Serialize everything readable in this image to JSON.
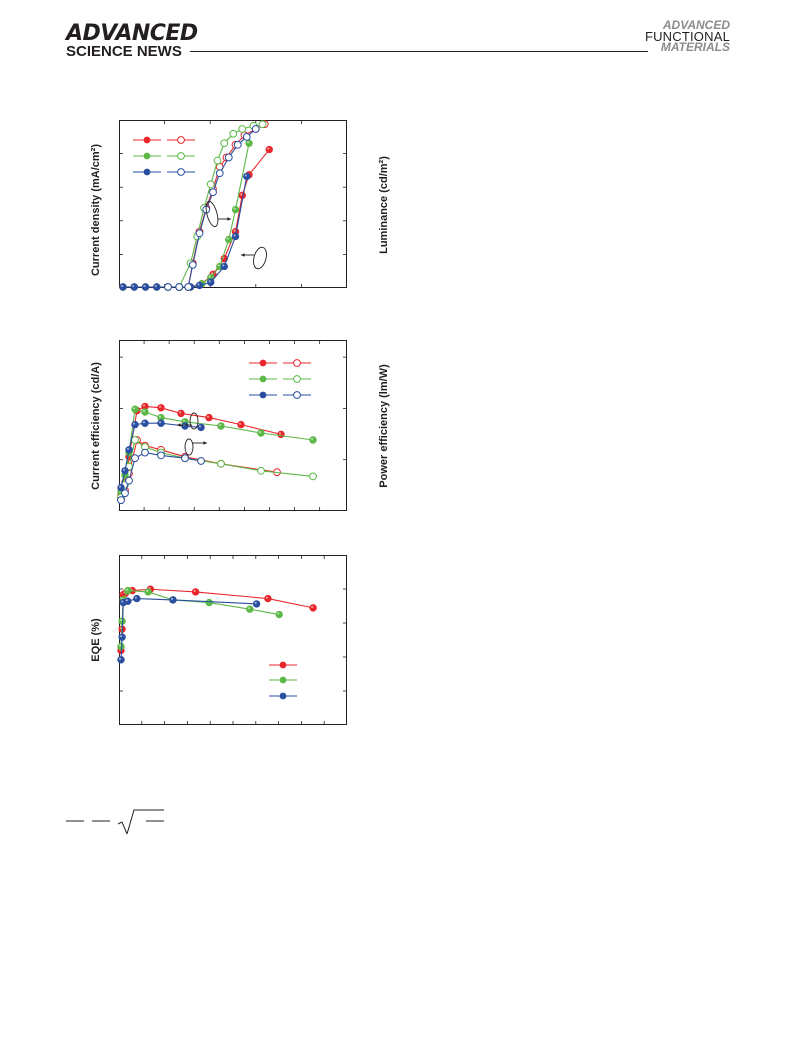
{
  "header": {
    "journal_left_top": "ADVANCED",
    "journal_left_bottom": "SCIENCE NEWS",
    "journal_right": [
      "ADVANCED",
      "FUNCTIONAL",
      "MATERIALS"
    ]
  },
  "colors": {
    "red": "#e8262b",
    "green": "#5cb847",
    "blue": "#2a4fa0"
  },
  "chart_data": [
    {
      "type": "scatter",
      "panel": "top",
      "ylabel": "Current density (mA/cm²)",
      "ylabel_right": "Luminance (cd/m²)",
      "series": [
        {
          "color": "red",
          "marker": "filled",
          "axis": "left",
          "points": [
            [
              0,
              0
            ],
            [
              0.5,
              0
            ],
            [
              1,
              0
            ],
            [
              1.5,
              0
            ],
            [
              2,
              0
            ],
            [
              2.5,
              0
            ],
            [
              3,
              0
            ],
            [
              3.5,
              0.2
            ],
            [
              4,
              0.8
            ],
            [
              4.5,
              1.8
            ],
            [
              5,
              3.5
            ],
            [
              5.3,
              5.8
            ],
            [
              5.6,
              7.1
            ],
            [
              6.5,
              8.7
            ]
          ]
        },
        {
          "color": "red",
          "marker": "hollow",
          "axis": "right",
          "points": [
            [
              2,
              0
            ],
            [
              2.5,
              0
            ],
            [
              2.9,
              0
            ],
            [
              3.1,
              1.5
            ],
            [
              3.4,
              3.5
            ],
            [
              3.7,
              5
            ],
            [
              4,
              6.2
            ],
            [
              4.3,
              7.6
            ],
            [
              4.6,
              8.2
            ],
            [
              5,
              9
            ],
            [
              5.4,
              9.6
            ],
            [
              5.9,
              10
            ],
            [
              6.3,
              10.3
            ]
          ]
        },
        {
          "color": "green",
          "marker": "filled",
          "axis": "left",
          "points": [
            [
              0,
              0
            ],
            [
              0.5,
              0
            ],
            [
              1,
              0
            ],
            [
              1.5,
              0
            ],
            [
              2,
              0
            ],
            [
              2.5,
              0
            ],
            [
              3,
              0
            ],
            [
              3.5,
              0.2
            ],
            [
              3.9,
              0.6
            ],
            [
              4.3,
              1.3
            ],
            [
              4.7,
              3
            ],
            [
              5,
              4.9
            ],
            [
              5.6,
              9.1
            ]
          ]
        },
        {
          "color": "green",
          "marker": "hollow",
          "axis": "right",
          "points": [
            [
              2,
              0
            ],
            [
              2.5,
              0
            ],
            [
              3,
              1.5
            ],
            [
              3.3,
              3.2
            ],
            [
              3.6,
              5
            ],
            [
              3.9,
              6.5
            ],
            [
              4.2,
              8
            ],
            [
              4.5,
              9.1
            ],
            [
              4.9,
              9.7
            ],
            [
              5.3,
              10
            ],
            [
              5.8,
              10.2
            ],
            [
              6.2,
              10.3
            ]
          ]
        },
        {
          "color": "blue",
          "marker": "filled",
          "axis": "left",
          "points": [
            [
              0,
              0
            ],
            [
              0.5,
              0
            ],
            [
              1,
              0
            ],
            [
              1.5,
              0
            ],
            [
              2,
              0
            ],
            [
              2.5,
              0
            ],
            [
              3,
              0
            ],
            [
              3.4,
              0.1
            ],
            [
              3.9,
              0.3
            ],
            [
              4.5,
              1.3
            ],
            [
              5,
              3.2
            ],
            [
              5.5,
              7
            ]
          ]
        },
        {
          "color": "blue",
          "marker": "hollow",
          "axis": "right",
          "points": [
            [
              2,
              0
            ],
            [
              2.5,
              0
            ],
            [
              2.9,
              0
            ],
            [
              3.1,
              1.4
            ],
            [
              3.4,
              3.4
            ],
            [
              3.7,
              4.9
            ],
            [
              4,
              6
            ],
            [
              4.3,
              7.2
            ],
            [
              4.7,
              8.2
            ],
            [
              5.1,
              9
            ],
            [
              5.5,
              9.5
            ],
            [
              5.9,
              10
            ]
          ]
        }
      ]
    },
    {
      "type": "scatter",
      "panel": "middle",
      "ylabel": "Current efficiency (cd/A)",
      "ylabel_right": "Power efficiency (lm/W)",
      "series": [
        {
          "color": "red",
          "marker": "filled",
          "axis": "left",
          "points": [
            [
              0,
              0.6
            ],
            [
              0.1,
              1.5
            ],
            [
              0.2,
              3.3
            ],
            [
              0.4,
              6.6
            ],
            [
              0.6,
              6.9
            ],
            [
              1,
              6.8
            ],
            [
              1.5,
              6.4
            ],
            [
              2.2,
              6.1
            ],
            [
              3,
              5.6
            ],
            [
              4,
              4.9
            ]
          ]
        },
        {
          "color": "red",
          "marker": "hollow",
          "axis": "right",
          "points": [
            [
              0,
              0.3
            ],
            [
              0.1,
              0.9
            ],
            [
              0.2,
              2.1
            ],
            [
              0.4,
              4.5
            ],
            [
              0.6,
              4.1
            ],
            [
              1,
              3.8
            ],
            [
              1.6,
              3.3
            ],
            [
              2.5,
              2.8
            ],
            [
              3.9,
              2.2
            ]
          ]
        },
        {
          "color": "green",
          "marker": "filled",
          "axis": "left",
          "points": [
            [
              0,
              0.8
            ],
            [
              0.1,
              2
            ],
            [
              0.2,
              3.6
            ],
            [
              0.35,
              6.7
            ],
            [
              0.6,
              6.5
            ],
            [
              1,
              6.1
            ],
            [
              1.6,
              5.8
            ],
            [
              2.5,
              5.5
            ],
            [
              3.5,
              5
            ],
            [
              4.8,
              4.5
            ]
          ]
        },
        {
          "color": "green",
          "marker": "hollow",
          "axis": "right",
          "points": [
            [
              0,
              0.4
            ],
            [
              0.1,
              1.3
            ],
            [
              0.2,
              2.6
            ],
            [
              0.35,
              4.5
            ],
            [
              0.6,
              4
            ],
            [
              1,
              3.6
            ],
            [
              1.6,
              3.2
            ],
            [
              2.5,
              2.8
            ],
            [
              3.5,
              2.3
            ],
            [
              4.8,
              1.9
            ]
          ]
        },
        {
          "color": "blue",
          "marker": "filled",
          "axis": "left",
          "points": [
            [
              0,
              1.1
            ],
            [
              0.1,
              2.3
            ],
            [
              0.2,
              3.8
            ],
            [
              0.35,
              5.6
            ],
            [
              0.6,
              5.7
            ],
            [
              1,
              5.7
            ],
            [
              1.6,
              5.5
            ],
            [
              2,
              5.4
            ]
          ]
        },
        {
          "color": "blue",
          "marker": "hollow",
          "axis": "right",
          "points": [
            [
              0,
              0.2
            ],
            [
              0.1,
              0.7
            ],
            [
              0.2,
              1.6
            ],
            [
              0.35,
              3.2
            ],
            [
              0.6,
              3.6
            ],
            [
              1,
              3.4
            ],
            [
              1.6,
              3.2
            ],
            [
              2,
              3
            ]
          ]
        }
      ]
    },
    {
      "type": "scatter",
      "panel": "bottom",
      "ylabel": "EQE (%)",
      "series": [
        {
          "color": "red",
          "marker": "filled",
          "points": [
            [
              0,
              3.2
            ],
            [
              0.05,
              4.8
            ],
            [
              0.1,
              7.4
            ],
            [
              0.2,
              7.5
            ],
            [
              0.5,
              7.7
            ],
            [
              1.3,
              7.8
            ],
            [
              3.3,
              7.6
            ],
            [
              6.5,
              7.1
            ],
            [
              8.5,
              6.4
            ]
          ]
        },
        {
          "color": "green",
          "marker": "filled",
          "points": [
            [
              0,
              3.5
            ],
            [
              0.05,
              5.4
            ],
            [
              0.1,
              7
            ],
            [
              0.3,
              7.7
            ],
            [
              1.2,
              7.6
            ],
            [
              2.3,
              7
            ],
            [
              3.9,
              6.8
            ],
            [
              5.7,
              6.3
            ],
            [
              7,
              5.9
            ]
          ]
        },
        {
          "color": "blue",
          "marker": "filled",
          "points": [
            [
              0,
              2.5
            ],
            [
              0.05,
              4.2
            ],
            [
              0.1,
              6.8
            ],
            [
              0.3,
              6.9
            ],
            [
              0.7,
              7.1
            ],
            [
              2.3,
              7
            ],
            [
              6,
              6.7
            ]
          ]
        }
      ]
    }
  ]
}
